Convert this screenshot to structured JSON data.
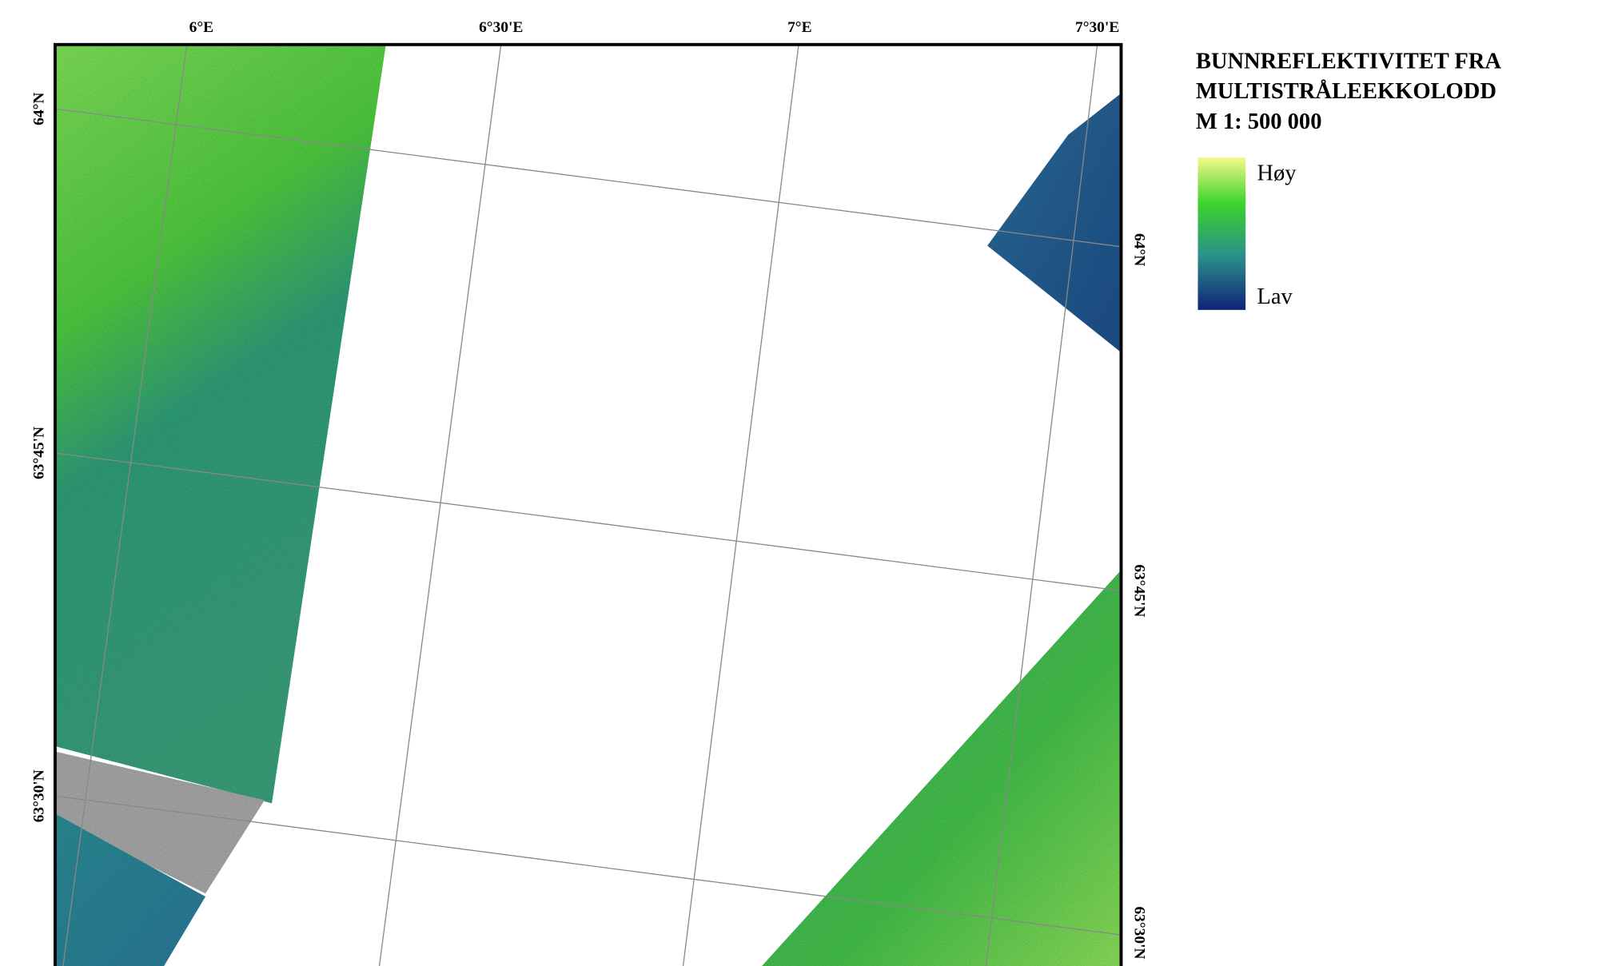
{
  "map": {
    "title": [
      "BUNNREFLEKTIVITET FRA",
      "MULTISTRÅLEEKKOLODD",
      "M 1: 500 000"
    ],
    "legend": {
      "high": "Høy",
      "low": "Lav"
    },
    "top_labels": [
      "6°E",
      "6°30'E",
      "7°E",
      "7°30'E"
    ],
    "left_labels": [
      "64°N",
      "63°45'N",
      "63°30'N"
    ],
    "right_labels": [
      "64°N",
      "63°45'N",
      "63°30'N"
    ]
  }
}
